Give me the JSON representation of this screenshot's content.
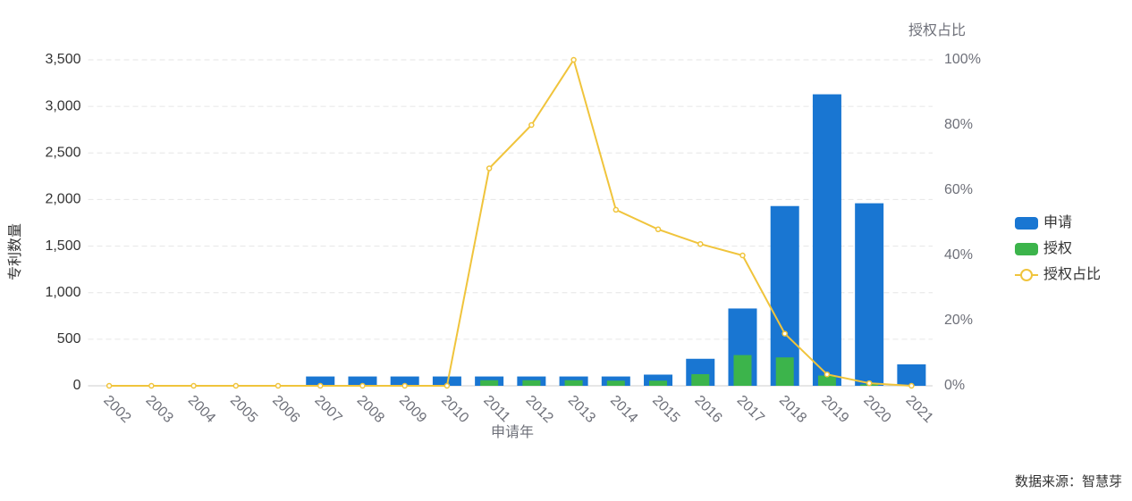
{
  "chart_data": {
    "type": "bar-line",
    "x_label": "申请年",
    "y_label": "专利数量",
    "y2_label": "授权占比",
    "source": "数据来源：智慧芽",
    "categories": [
      "2002",
      "2003",
      "2004",
      "2005",
      "2006",
      "2007",
      "2008",
      "2009",
      "2010",
      "2011",
      "2012",
      "2013",
      "2014",
      "2015",
      "2016",
      "2017",
      "2018",
      "2019",
      "2020",
      "2021"
    ],
    "series": [
      {
        "name": "申请",
        "type": "bar",
        "color": "#1976d2",
        "values": [
          0,
          0,
          0,
          0,
          0,
          100,
          100,
          100,
          100,
          100,
          100,
          100,
          100,
          120,
          290,
          830,
          1930,
          3130,
          1960,
          230
        ]
      },
      {
        "name": "授权",
        "type": "bar",
        "color": "#3cb44b",
        "values": [
          0,
          0,
          0,
          0,
          0,
          0,
          0,
          0,
          0,
          60,
          60,
          60,
          55,
          55,
          125,
          330,
          305,
          110,
          15,
          0
        ]
      },
      {
        "name": "授权占比",
        "type": "line",
        "axis": "y2",
        "color": "#f0c43c",
        "values": [
          0,
          0,
          0,
          0,
          0,
          0,
          0,
          0,
          0,
          66.7,
          80,
          100,
          54,
          48,
          43.5,
          40,
          16,
          3.5,
          0.8,
          0
        ]
      }
    ],
    "ylim": [
      0,
      3500
    ],
    "yticks": [
      0,
      500,
      {
        "value": 1000,
        "label": "1,000"
      },
      {
        "value": 1500,
        "label": "1,500"
      },
      {
        "value": 2000,
        "label": "2,000"
      },
      {
        "value": 2500,
        "label": "2,500"
      },
      {
        "value": 3000,
        "label": "3,000"
      },
      {
        "value": 3500,
        "label": "3,500"
      }
    ],
    "y2lim": [
      0,
      100
    ],
    "y2ticks": [
      {
        "value": 0,
        "label": "0%"
      },
      {
        "value": 20,
        "label": "20%"
      },
      {
        "value": 40,
        "label": "40%"
      },
      {
        "value": 60,
        "label": "60%"
      },
      {
        "value": 80,
        "label": "80%"
      },
      {
        "value": 100,
        "label": "100%"
      }
    ],
    "grid": true,
    "legend": "right"
  }
}
